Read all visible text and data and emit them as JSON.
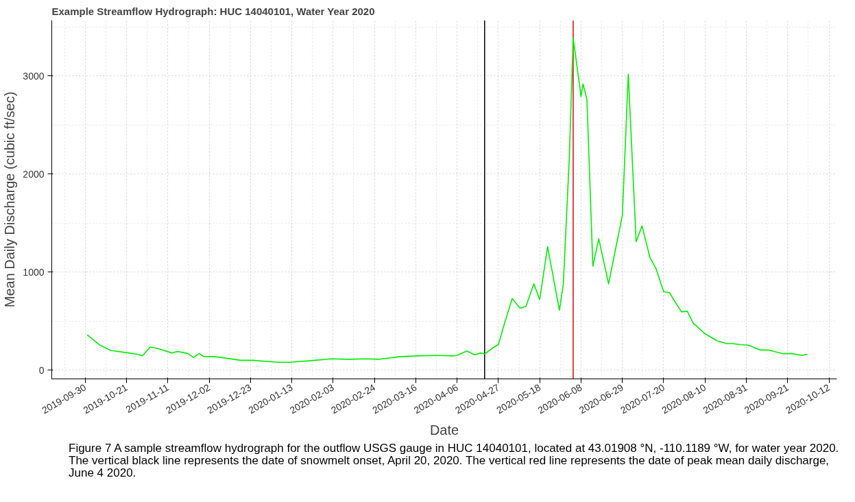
{
  "chart_data": {
    "type": "line",
    "title": "Example Streamflow Hydrograph: HUC 14040101, Water Year 2020",
    "xlabel": "Date",
    "ylabel": "Mean Daily Discharge (cubic ft/sec)",
    "x": [
      "2019-10-01",
      "2019-10-07",
      "2019-10-13",
      "2019-10-22",
      "2019-10-27",
      "2019-10-29",
      "2019-11-02",
      "2019-11-06",
      "2019-11-13",
      "2019-11-16",
      "2019-11-21",
      "2019-11-24",
      "2019-11-27",
      "2019-11-29",
      "2019-12-06",
      "2019-12-18",
      "2019-12-24",
      "2020-01-06",
      "2020-01-12",
      "2020-01-25",
      "2020-02-02",
      "2020-02-11",
      "2020-02-20",
      "2020-02-26",
      "2020-03-07",
      "2020-03-17",
      "2020-03-26",
      "2020-04-04",
      "2020-04-06",
      "2020-04-11",
      "2020-04-15",
      "2020-04-18",
      "2020-04-20",
      "2020-04-24",
      "2020-04-27",
      "2020-04-30",
      "2020-05-04",
      "2020-05-08",
      "2020-05-11",
      "2020-05-15",
      "2020-05-18",
      "2020-05-22",
      "2020-05-28",
      "2020-05-30",
      "2020-06-02",
      "2020-06-04",
      "2020-06-08",
      "2020-06-09",
      "2020-06-11",
      "2020-06-14",
      "2020-06-17",
      "2020-06-22",
      "2020-06-29",
      "2020-07-02",
      "2020-07-06",
      "2020-07-09",
      "2020-07-13",
      "2020-07-16",
      "2020-07-20",
      "2020-07-23",
      "2020-07-26",
      "2020-07-29",
      "2020-08-01",
      "2020-08-04",
      "2020-08-10",
      "2020-08-16",
      "2020-08-21",
      "2020-08-24",
      "2020-08-28",
      "2020-09-01",
      "2020-09-07",
      "2020-09-11",
      "2020-09-19",
      "2020-09-23",
      "2020-09-28",
      "2020-10-01"
    ],
    "series": [
      {
        "color": "#00ee00",
        "values": [
          360,
          260,
          200,
          175,
          160,
          145,
          235,
          220,
          175,
          190,
          170,
          130,
          170,
          140,
          135,
          100,
          100,
          80,
          80,
          100,
          115,
          110,
          115,
          110,
          135,
          145,
          150,
          145,
          150,
          195,
          155,
          175,
          165,
          225,
          260,
          470,
          730,
          630,
          650,
          880,
          720,
          1260,
          610,
          880,
          2150,
          3390,
          2790,
          2920,
          2760,
          1060,
          1340,
          880,
          1580,
          3020,
          1310,
          1470,
          1150,
          1040,
          800,
          790,
          690,
          595,
          600,
          480,
          370,
          300,
          270,
          270,
          260,
          255,
          205,
          205,
          165,
          170,
          150,
          160
        ]
      }
    ],
    "xlim": [
      "2019-09-13",
      "2020-10-16"
    ],
    "ylim": [
      -90,
      3570
    ],
    "xticks": [
      "2019-09-30",
      "2019-10-21",
      "2019-11-11",
      "2019-12-02",
      "2019-12-23",
      "2020-01-13",
      "2020-02-03",
      "2020-02-24",
      "2020-03-16",
      "2020-04-06",
      "2020-04-27",
      "2020-05-18",
      "2020-06-08",
      "2020-06-29",
      "2020-07-20",
      "2020-08-10",
      "2020-08-31",
      "2020-09-21",
      "2020-10-12"
    ],
    "yticks": [
      0,
      1000,
      2000,
      3000
    ],
    "ref_lines": [
      {
        "axis": "x",
        "value": "2020-04-20",
        "color": "#000000"
      },
      {
        "axis": "x",
        "value": "2020-06-04",
        "color": "#e8000b"
      }
    ],
    "grid": true,
    "annotations": [
      "Figure 7 A sample streamflow hydrograph for the outflow USGS gauge in HUC 14040101, located at 43.01908 °N, -110.1189 °W, for water year 2020. The vertical black line represents the date of snowmelt onset, April 20, 2020. The vertical red line represents the date of peak mean daily discharge, June 4 2020."
    ]
  }
}
